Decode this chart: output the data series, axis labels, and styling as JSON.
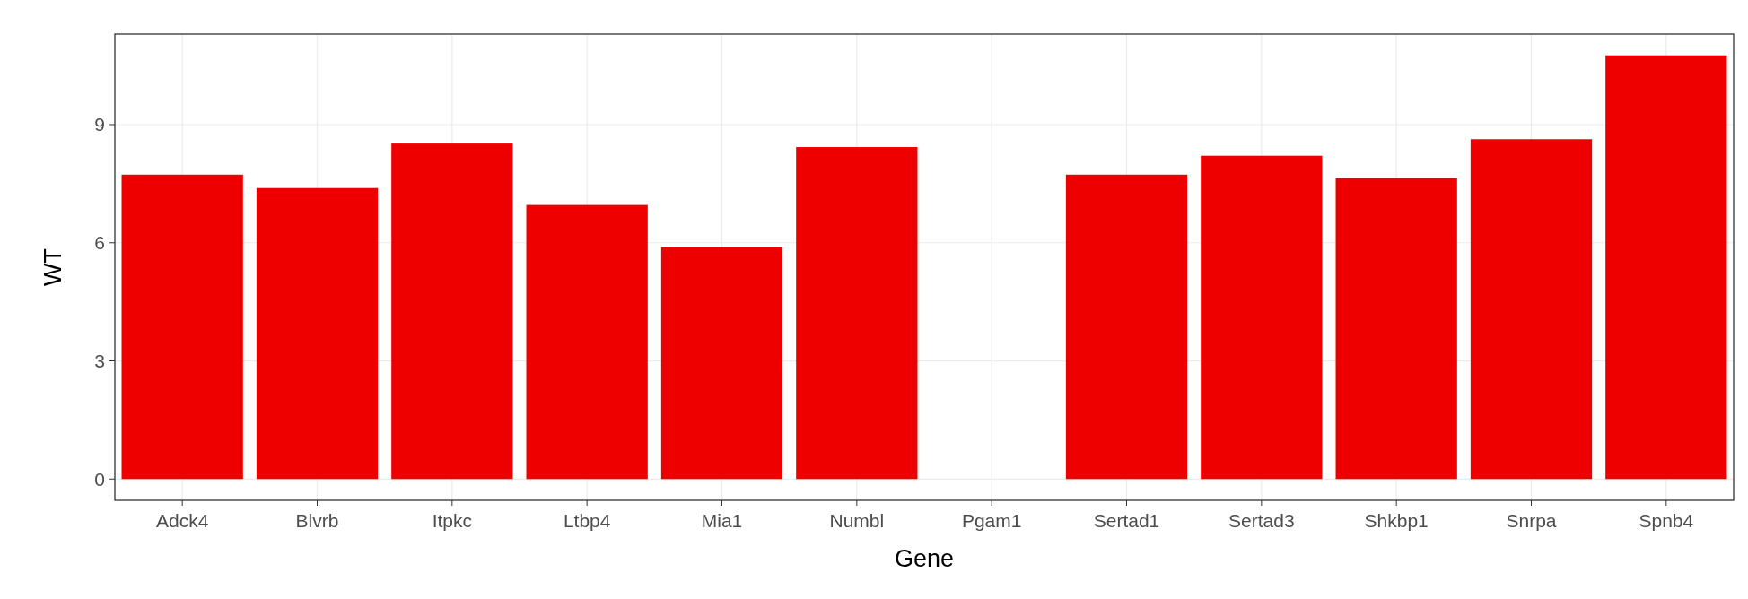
{
  "chart_data": {
    "type": "bar",
    "xlabel": "Gene",
    "ylabel": "WT",
    "categories": [
      "Adck4",
      "Blvrb",
      "Itpkc",
      "Ltbp4",
      "Mia1",
      "Numbl",
      "Pgam1",
      "Sertad1",
      "Sertad3",
      "Shkbp1",
      "Snrpa",
      "Spnb4"
    ],
    "values": [
      7.73,
      7.39,
      8.52,
      6.96,
      5.89,
      8.43,
      0,
      7.73,
      8.21,
      7.64,
      8.63,
      10.76
    ],
    "color": "#ee0000",
    "ylim": [
      -0.54,
      11.3
    ],
    "yticks": [
      0,
      3,
      6,
      9
    ],
    "grid": true
  }
}
